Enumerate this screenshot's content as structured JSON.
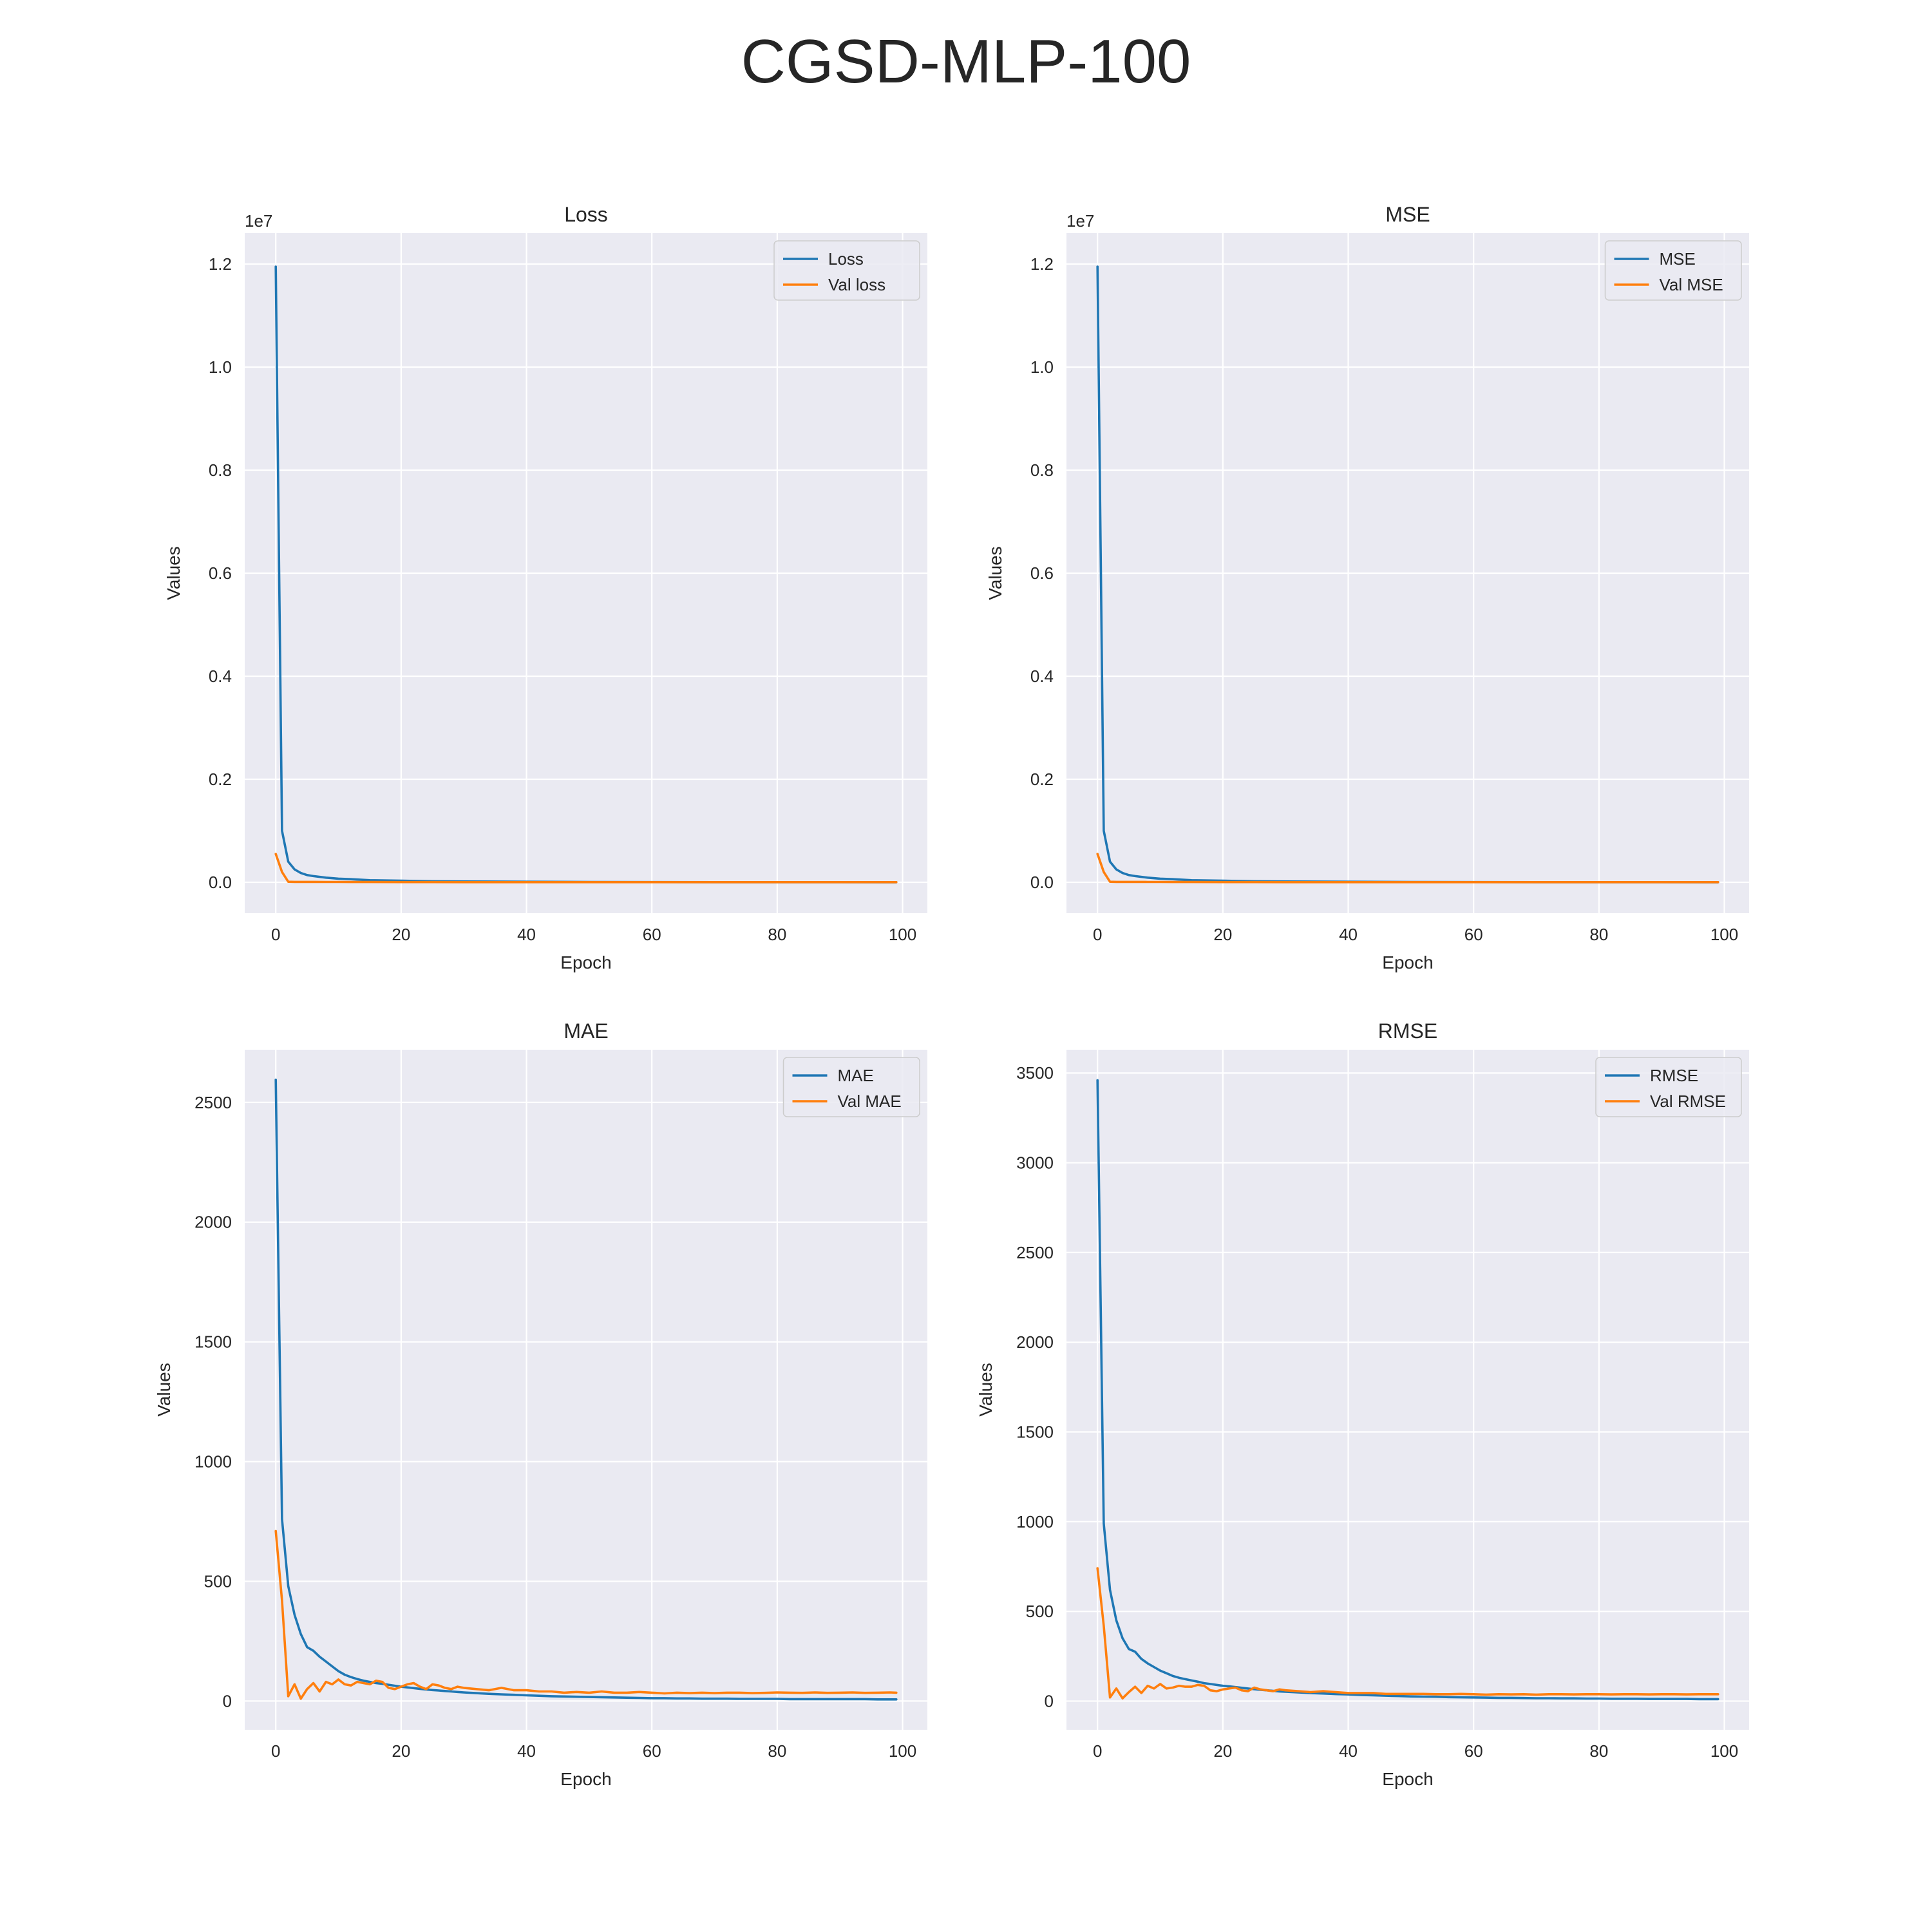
{
  "figure": {
    "title": "CGSD-MLP-100"
  },
  "colors": {
    "train": "#1f77b4",
    "val": "#ff7f0e",
    "axes_bg": "#eaeaf2",
    "grid": "#ffffff",
    "text": "#262626"
  },
  "chart_data": [
    {
      "type": "line",
      "title": "Loss",
      "xlabel": "Epoch",
      "ylabel": "Values",
      "offset_label": "1e7",
      "xlim": [
        -4.95,
        103.95
      ],
      "ylim": [
        -0.06,
        1.26
      ],
      "xticks": [
        0,
        20,
        40,
        60,
        80,
        100
      ],
      "yticks": [
        0.0,
        0.2,
        0.4,
        0.6,
        0.8,
        1.0,
        1.2
      ],
      "ytick_labels": [
        "0.0",
        "0.2",
        "0.4",
        "0.6",
        "0.8",
        "1.0",
        "1.2"
      ],
      "grid": true,
      "legend_position": "upper right",
      "x": [
        0,
        1,
        2,
        3,
        4,
        5,
        6,
        8,
        10,
        12,
        15,
        20,
        25,
        30,
        40,
        50,
        60,
        70,
        80,
        90,
        99
      ],
      "series": [
        {
          "name": "Loss",
          "values": [
            1.195,
            0.1,
            0.04,
            0.025,
            0.018,
            0.014,
            0.012,
            0.009,
            0.007,
            0.006,
            0.004,
            0.003,
            0.002,
            0.0015,
            0.001,
            0.0006,
            0.0004,
            0.0003,
            0.0002,
            0.0002,
            0.0001
          ]
        },
        {
          "name": "Val loss",
          "values": [
            0.055,
            0.02,
            0.001,
            0.0008,
            0.0008,
            0.0007,
            0.0007,
            0.0006,
            0.0006,
            0.0005,
            0.0005,
            0.0004,
            0.0004,
            0.0003,
            0.0003,
            0.0003,
            0.0003,
            0.0003,
            0.0002,
            0.0002,
            0.0002
          ]
        }
      ]
    },
    {
      "type": "line",
      "title": "MSE",
      "xlabel": "Epoch",
      "ylabel": "Values",
      "offset_label": "1e7",
      "xlim": [
        -4.95,
        103.95
      ],
      "ylim": [
        -0.06,
        1.26
      ],
      "xticks": [
        0,
        20,
        40,
        60,
        80,
        100
      ],
      "yticks": [
        0.0,
        0.2,
        0.4,
        0.6,
        0.8,
        1.0,
        1.2
      ],
      "ytick_labels": [
        "0.0",
        "0.2",
        "0.4",
        "0.6",
        "0.8",
        "1.0",
        "1.2"
      ],
      "grid": true,
      "legend_position": "upper right",
      "x": [
        0,
        1,
        2,
        3,
        4,
        5,
        6,
        8,
        10,
        12,
        15,
        20,
        25,
        30,
        40,
        50,
        60,
        70,
        80,
        90,
        99
      ],
      "series": [
        {
          "name": "MSE",
          "values": [
            1.195,
            0.1,
            0.04,
            0.025,
            0.018,
            0.014,
            0.012,
            0.009,
            0.007,
            0.006,
            0.004,
            0.003,
            0.002,
            0.0015,
            0.001,
            0.0006,
            0.0004,
            0.0003,
            0.0002,
            0.0002,
            0.0001
          ]
        },
        {
          "name": "Val MSE",
          "values": [
            0.055,
            0.02,
            0.001,
            0.0008,
            0.0008,
            0.0007,
            0.0007,
            0.0006,
            0.0006,
            0.0005,
            0.0005,
            0.0004,
            0.0004,
            0.0003,
            0.0003,
            0.0003,
            0.0003,
            0.0003,
            0.0002,
            0.0002,
            0.0002
          ]
        }
      ]
    },
    {
      "type": "line",
      "title": "MAE",
      "xlabel": "Epoch",
      "ylabel": "Values",
      "offset_label": "",
      "xlim": [
        -4.95,
        103.95
      ],
      "ylim": [
        -120,
        2720
      ],
      "xticks": [
        0,
        20,
        40,
        60,
        80,
        100
      ],
      "yticks": [
        0,
        500,
        1000,
        1500,
        2000,
        2500
      ],
      "ytick_labels": [
        "0",
        "500",
        "1000",
        "1500",
        "2000",
        "2500"
      ],
      "grid": true,
      "legend_position": "upper right",
      "x": [
        0,
        1,
        2,
        3,
        4,
        5,
        6,
        7,
        8,
        9,
        10,
        11,
        12,
        13,
        14,
        15,
        16,
        17,
        18,
        19,
        20,
        21,
        22,
        23,
        24,
        25,
        26,
        27,
        28,
        29,
        30,
        32,
        34,
        36,
        38,
        40,
        42,
        44,
        46,
        48,
        50,
        52,
        54,
        56,
        58,
        60,
        62,
        64,
        66,
        68,
        70,
        72,
        74,
        76,
        78,
        80,
        82,
        84,
        86,
        88,
        90,
        92,
        94,
        96,
        98,
        99
      ],
      "series": [
        {
          "name": "MAE",
          "values": [
            2595,
            760,
            480,
            360,
            280,
            225,
            210,
            185,
            165,
            145,
            125,
            110,
            100,
            92,
            85,
            80,
            75,
            72,
            68,
            64,
            60,
            57,
            54,
            51,
            48,
            46,
            44,
            42,
            40,
            38,
            36,
            33,
            30,
            28,
            26,
            24,
            22,
            20,
            19,
            18,
            17,
            16,
            15,
            14,
            13,
            12,
            12,
            11,
            11,
            10,
            10,
            10,
            9,
            9,
            9,
            9,
            8,
            8,
            8,
            8,
            8,
            8,
            8,
            7,
            7,
            7
          ]
        },
        {
          "name": "Val MAE",
          "values": [
            710,
            420,
            20,
            70,
            10,
            50,
            75,
            40,
            80,
            70,
            90,
            70,
            65,
            80,
            75,
            70,
            85,
            80,
            55,
            50,
            60,
            70,
            75,
            60,
            50,
            70,
            65,
            55,
            50,
            60,
            55,
            50,
            45,
            55,
            45,
            45,
            40,
            40,
            35,
            38,
            35,
            40,
            35,
            35,
            38,
            35,
            32,
            35,
            33,
            35,
            33,
            35,
            35,
            33,
            34,
            36,
            35,
            34,
            36,
            34,
            35,
            36,
            34,
            35,
            36,
            35
          ]
        }
      ]
    },
    {
      "type": "line",
      "title": "RMSE",
      "xlabel": "Epoch",
      "ylabel": "Values",
      "offset_label": "",
      "xlim": [
        -4.95,
        103.95
      ],
      "ylim": [
        -160,
        3630
      ],
      "xticks": [
        0,
        20,
        40,
        60,
        80,
        100
      ],
      "yticks": [
        0,
        500,
        1000,
        1500,
        2000,
        2500,
        3000,
        3500
      ],
      "ytick_labels": [
        "0",
        "500",
        "1000",
        "1500",
        "2000",
        "2500",
        "3000",
        "3500"
      ],
      "grid": true,
      "legend_position": "upper right",
      "x": [
        0,
        1,
        2,
        3,
        4,
        5,
        6,
        7,
        8,
        9,
        10,
        11,
        12,
        13,
        14,
        15,
        16,
        17,
        18,
        19,
        20,
        21,
        22,
        23,
        24,
        25,
        26,
        27,
        28,
        29,
        30,
        32,
        34,
        36,
        38,
        40,
        42,
        44,
        46,
        48,
        50,
        52,
        54,
        56,
        58,
        60,
        62,
        64,
        66,
        68,
        70,
        72,
        74,
        76,
        78,
        80,
        82,
        84,
        86,
        88,
        90,
        92,
        94,
        96,
        98,
        99
      ],
      "series": [
        {
          "name": "RMSE",
          "values": [
            3460,
            990,
            620,
            450,
            350,
            290,
            275,
            235,
            210,
            190,
            170,
            155,
            140,
            130,
            122,
            115,
            108,
            100,
            95,
            90,
            85,
            82,
            78,
            74,
            70,
            66,
            63,
            60,
            57,
            54,
            52,
            48,
            45,
            42,
            39,
            37,
            34,
            32,
            30,
            28,
            26,
            25,
            24,
            22,
            21,
            20,
            19,
            18,
            18,
            17,
            16,
            16,
            15,
            15,
            14,
            14,
            13,
            13,
            13,
            12,
            12,
            12,
            12,
            11,
            11,
            11
          ]
        },
        {
          "name": "Val RMSE",
          "values": [
            740,
            420,
            20,
            70,
            15,
            50,
            80,
            45,
            85,
            70,
            95,
            70,
            75,
            85,
            80,
            80,
            90,
            85,
            60,
            55,
            65,
            70,
            75,
            60,
            55,
            75,
            65,
            60,
            55,
            65,
            60,
            55,
            50,
            55,
            50,
            45,
            45,
            45,
            40,
            40,
            40,
            40,
            38,
            38,
            40,
            38,
            36,
            38,
            37,
            38,
            36,
            38,
            38,
            37,
            38,
            38,
            37,
            38,
            38,
            37,
            38,
            38,
            37,
            38,
            38,
            38
          ]
        }
      ]
    }
  ]
}
